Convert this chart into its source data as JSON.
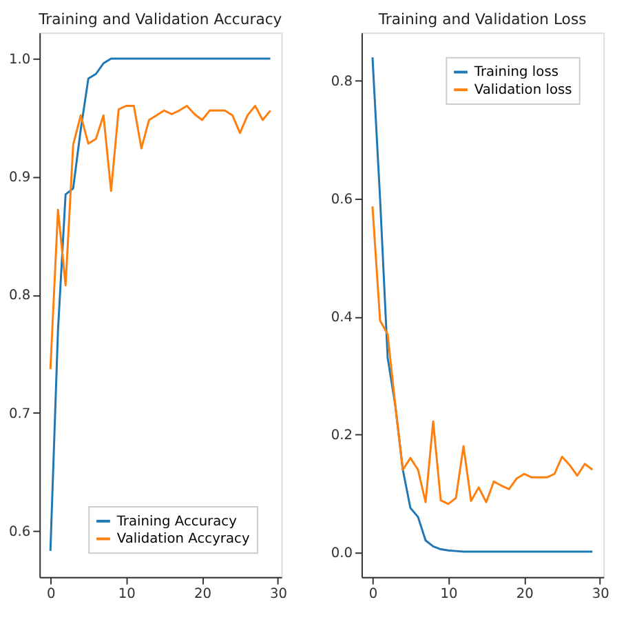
{
  "chart_data": [
    {
      "type": "line",
      "title": "Training and Validation Accuracy",
      "x": [
        0,
        1,
        2,
        3,
        4,
        5,
        6,
        7,
        8,
        9,
        10,
        11,
        12,
        13,
        14,
        15,
        16,
        17,
        18,
        19,
        20,
        21,
        22,
        23,
        24,
        25,
        26,
        27,
        28,
        29
      ],
      "series": [
        {
          "name": "Training Accuracy",
          "color": "#1f77b4",
          "values": [
            0.583,
            0.77,
            0.885,
            0.89,
            0.94,
            0.983,
            0.987,
            0.996,
            1.0,
            1.0,
            1.0,
            1.0,
            1.0,
            1.0,
            1.0,
            1.0,
            1.0,
            1.0,
            1.0,
            1.0,
            1.0,
            1.0,
            1.0,
            1.0,
            1.0,
            1.0,
            1.0,
            1.0,
            1.0,
            1.0
          ]
        },
        {
          "name": "Validation Accyracy",
          "color": "#ff7f0e",
          "values": [
            0.737,
            0.872,
            0.808,
            0.927,
            0.952,
            0.928,
            0.932,
            0.952,
            0.888,
            0.957,
            0.96,
            0.96,
            0.924,
            0.948,
            0.952,
            0.956,
            0.953,
            0.956,
            0.96,
            0.953,
            0.948,
            0.956,
            0.956,
            0.956,
            0.952,
            0.937,
            0.952,
            0.96,
            0.948,
            0.956
          ]
        }
      ],
      "xlim": [
        -1.45,
        30.45
      ],
      "xticks": [
        0,
        10,
        20,
        30
      ],
      "ylim": [
        0.561,
        1.022
      ],
      "yticks": [
        0.6,
        0.7,
        0.8,
        0.9,
        {
          "value": 1.0,
          "label": "1.0"
        }
      ],
      "grid": false,
      "legend": "bottom right",
      "line_style": "solid",
      "marker": "none"
    },
    {
      "type": "line",
      "title": "Training and Validation Loss",
      "x": [
        0,
        1,
        2,
        3,
        4,
        5,
        6,
        7,
        8,
        9,
        10,
        11,
        12,
        13,
        14,
        15,
        16,
        17,
        18,
        19,
        20,
        21,
        22,
        23,
        24,
        25,
        26,
        27,
        28,
        29
      ],
      "series": [
        {
          "name": "Training loss",
          "color": "#1f77b4",
          "values": [
            0.84,
            0.6,
            0.33,
            0.25,
            0.14,
            0.075,
            0.06,
            0.02,
            0.01,
            0.005,
            0.003,
            0.002,
            0.001,
            0.001,
            0.001,
            0.001,
            0.001,
            0.001,
            0.001,
            0.001,
            0.001,
            0.001,
            0.001,
            0.001,
            0.001,
            0.001,
            0.001,
            0.001,
            0.001,
            0.001
          ]
        },
        {
          "name": "Validation loss",
          "color": "#ff7f0e",
          "values": [
            0.587,
            0.393,
            0.37,
            0.25,
            0.14,
            0.16,
            0.14,
            0.085,
            0.222,
            0.088,
            0.082,
            0.092,
            0.18,
            0.087,
            0.11,
            0.085,
            0.12,
            0.113,
            0.107,
            0.125,
            0.133,
            0.127,
            0.127,
            0.127,
            0.133,
            0.162,
            0.148,
            0.13,
            0.15,
            0.14
          ]
        }
      ],
      "xlim": [
        -1.45,
        30.45
      ],
      "xticks": [
        0,
        10,
        20,
        30
      ],
      "ylim": [
        -0.042,
        0.882
      ],
      "yticks": [
        {
          "value": 0.0,
          "label": "0.0"
        },
        0.2,
        0.4,
        0.6,
        0.8
      ],
      "grid": false,
      "legend": "top right",
      "line_style": "solid",
      "marker": "none"
    }
  ]
}
